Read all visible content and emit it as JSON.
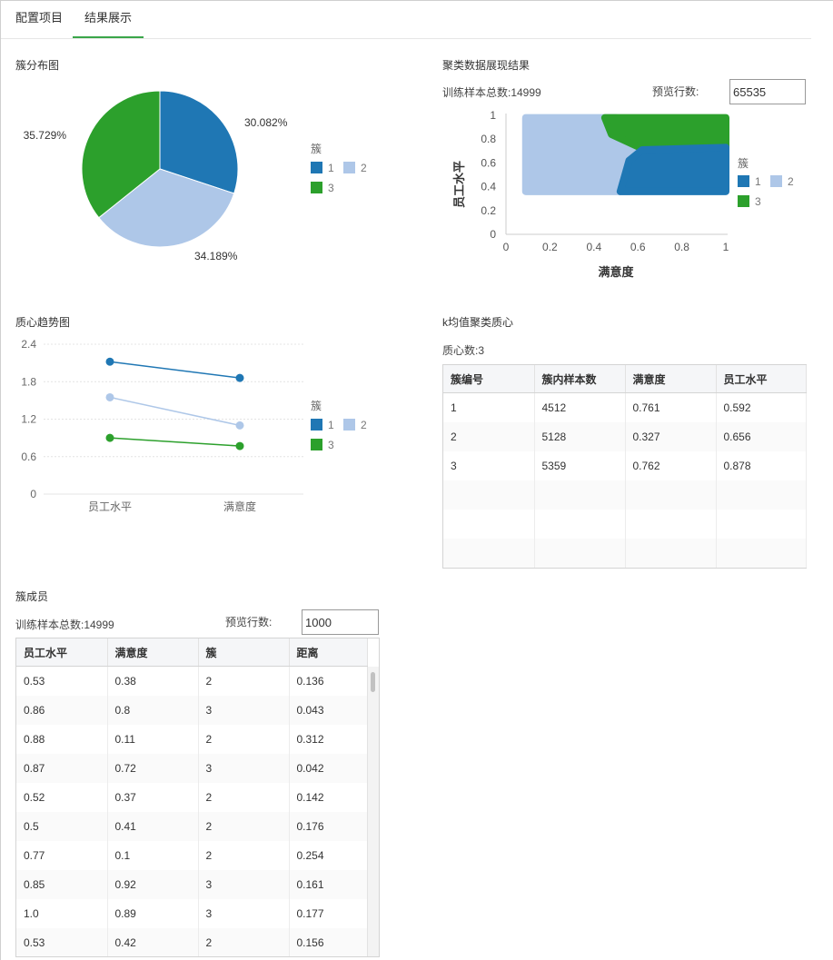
{
  "tabs": [
    {
      "label": "配置项目",
      "active": false
    },
    {
      "label": "结果展示",
      "active": true
    }
  ],
  "colors": {
    "cluster1": "#1f77b4",
    "cluster2": "#aec7e8",
    "cluster3": "#2ca02c",
    "active_tab": "#3aa64a"
  },
  "pie_section": {
    "title": "簇分布图",
    "chart_data": {
      "type": "pie",
      "legend_title": "簇",
      "legend_position": "right",
      "slices": [
        {
          "name": "1",
          "value": 30.082,
          "label": "30.082%"
        },
        {
          "name": "2",
          "value": 34.189,
          "label": "34.189%"
        },
        {
          "name": "3",
          "value": 35.729,
          "label": "35.729%"
        }
      ]
    }
  },
  "scatter_section": {
    "title": "聚类数据展现结果",
    "sample_label": "训练样本总数:14999",
    "preview_label": "预览行数:",
    "preview_value": "65535",
    "chart_data": {
      "type": "scatter",
      "xlabel": "满意度",
      "ylabel": "员工水平",
      "xlim": [
        0,
        1
      ],
      "ylim": [
        0,
        1
      ],
      "x_ticks": [
        "0",
        "0.2",
        "0.4",
        "0.6",
        "0.8",
        "1"
      ],
      "y_ticks": [
        "0",
        "0.2",
        "0.4",
        "0.6",
        "0.8",
        "1"
      ],
      "legend_title": "簇",
      "legend": [
        "1",
        "2",
        "3"
      ],
      "regions": [
        {
          "cluster": "2",
          "polygon": [
            [
              0.09,
              0.36
            ],
            [
              0.09,
              0.98
            ],
            [
              0.5,
              0.98
            ],
            [
              0.6,
              0.82
            ],
            [
              0.56,
              0.36
            ]
          ]
        },
        {
          "cluster": "3",
          "polygon": [
            [
              0.45,
              0.98
            ],
            [
              1.0,
              0.98
            ],
            [
              1.0,
              0.7
            ],
            [
              0.62,
              0.72
            ],
            [
              0.48,
              0.84
            ]
          ]
        },
        {
          "cluster": "1",
          "polygon": [
            [
              0.52,
              0.36
            ],
            [
              1.0,
              0.36
            ],
            [
              1.0,
              0.73
            ],
            [
              0.62,
              0.71
            ],
            [
              0.56,
              0.62
            ]
          ]
        }
      ]
    }
  },
  "trend_section": {
    "title": "质心趋势图",
    "chart_data": {
      "type": "line",
      "categories": [
        "员工水平",
        "满意度"
      ],
      "ylim": [
        0,
        2.4
      ],
      "y_ticks": [
        "0",
        "0.6",
        "1.2",
        "1.8",
        "2.4"
      ],
      "legend_title": "簇",
      "legend_position": "right",
      "series": [
        {
          "name": "1",
          "values": [
            2.12,
            1.86
          ]
        },
        {
          "name": "2",
          "values": [
            1.55,
            1.1
          ]
        },
        {
          "name": "3",
          "values": [
            0.9,
            0.77
          ]
        }
      ]
    }
  },
  "centroid_section": {
    "title": "k均值聚类质心",
    "count_label": "质心数:3",
    "columns": [
      "簇编号",
      "簇内样本数",
      "满意度",
      "员工水平"
    ],
    "rows": [
      [
        "1",
        "4512",
        "0.761",
        "0.592"
      ],
      [
        "2",
        "5128",
        "0.327",
        "0.656"
      ],
      [
        "3",
        "5359",
        "0.762",
        "0.878"
      ]
    ],
    "empty_rows": 3
  },
  "members_section": {
    "title": "簇成员",
    "sample_label": "训练样本总数:14999",
    "preview_label": "预览行数:",
    "preview_value": "1000",
    "columns": [
      "员工水平",
      "满意度",
      "簇",
      "距离"
    ],
    "rows": [
      [
        "0.53",
        "0.38",
        "2",
        "0.136"
      ],
      [
        "0.86",
        "0.8",
        "3",
        "0.043"
      ],
      [
        "0.88",
        "0.11",
        "2",
        "0.312"
      ],
      [
        "0.87",
        "0.72",
        "3",
        "0.042"
      ],
      [
        "0.52",
        "0.37",
        "2",
        "0.142"
      ],
      [
        "0.5",
        "0.41",
        "2",
        "0.176"
      ],
      [
        "0.77",
        "0.1",
        "2",
        "0.254"
      ],
      [
        "0.85",
        "0.92",
        "3",
        "0.161"
      ],
      [
        "1.0",
        "0.89",
        "3",
        "0.177"
      ],
      [
        "0.53",
        "0.42",
        "2",
        "0.156"
      ]
    ]
  }
}
